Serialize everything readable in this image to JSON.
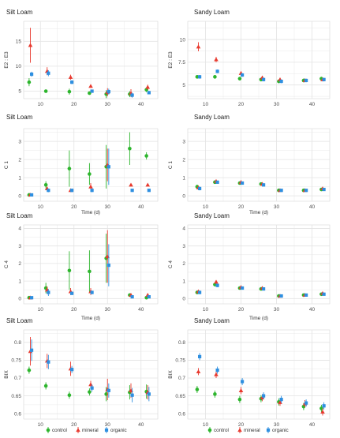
{
  "colors": {
    "control": "#2db52d",
    "mineral": "#e8392e",
    "organic": "#2e8fe0",
    "panel_bg": "#ffffff",
    "grid": "#e3e3e3",
    "axis_text": "#4d4d4d"
  },
  "legend": {
    "entries": [
      {
        "label": "control",
        "shape": "circle",
        "color": "#2db52d"
      },
      {
        "label": "mineral",
        "shape": "triangle",
        "color": "#e8392e"
      },
      {
        "label": "organic",
        "shape": "square",
        "color": "#2e8fe0"
      }
    ]
  },
  "chart_data": [
    {
      "type": "scatter",
      "title": "Silt Loam",
      "xlabel": "",
      "ylabel": "E2 : E3",
      "xlim": [
        5,
        45
      ],
      "ylim": [
        3.5,
        19
      ],
      "xticks": [
        10,
        20,
        30,
        40
      ],
      "yticks": [
        5,
        10,
        15
      ],
      "grid": true,
      "series": [
        {
          "name": "control",
          "x": [
            7,
            12,
            19,
            25,
            30,
            37,
            42
          ],
          "y": [
            6.8,
            5.0,
            4.9,
            4.6,
            4.4,
            4.4,
            5.3
          ],
          "err": [
            0.8,
            0.2,
            0.6,
            0.3,
            0.8,
            0.6,
            0.5
          ]
        },
        {
          "name": "mineral",
          "x": [
            7,
            12,
            19,
            25,
            30,
            37,
            42
          ],
          "y": [
            14.2,
            9.0,
            7.8,
            6.0,
            4.8,
            4.6,
            5.8
          ],
          "err": [
            3.5,
            0.8,
            0.5,
            0.3,
            0.8,
            0.8,
            0.5
          ]
        },
        {
          "name": "organic",
          "x": [
            7,
            12,
            19,
            25,
            30,
            37,
            42
          ],
          "y": [
            8.4,
            8.6,
            6.8,
            5.0,
            4.9,
            4.2,
            4.7
          ],
          "err": [
            0.5,
            0.6,
            0.4,
            0.3,
            0.6,
            0.5,
            0.3
          ]
        }
      ]
    },
    {
      "type": "scatter",
      "title": "Sandy Loam",
      "xlabel": "",
      "ylabel": "E2 : E3",
      "xlim": [
        5,
        45
      ],
      "ylim": [
        3.5,
        12
      ],
      "xticks": [
        10,
        20,
        30,
        40
      ],
      "yticks": [
        5,
        7.5,
        10
      ],
      "grid": true,
      "series": [
        {
          "name": "control",
          "x": [
            8,
            13,
            20,
            26,
            31,
            38,
            43
          ],
          "y": [
            5.9,
            5.9,
            5.7,
            5.6,
            5.4,
            5.5,
            5.7
          ],
          "err": [
            0.2,
            0.2,
            0.2,
            0.2,
            0.2,
            0.2,
            0.2
          ]
        },
        {
          "name": "mineral",
          "x": [
            8,
            13,
            20,
            26,
            31,
            38,
            43
          ],
          "y": [
            9.2,
            7.8,
            6.3,
            5.8,
            5.6,
            5.5,
            5.6
          ],
          "err": [
            0.5,
            0.3,
            0.2,
            0.2,
            0.2,
            0.2,
            0.2
          ]
        },
        {
          "name": "organic",
          "x": [
            8,
            13,
            20,
            26,
            31,
            38,
            43
          ],
          "y": [
            5.9,
            6.5,
            6.1,
            5.6,
            5.4,
            5.5,
            5.6
          ],
          "err": [
            0.2,
            0.2,
            0.2,
            0.2,
            0.2,
            0.2,
            0.2
          ]
        }
      ]
    },
    {
      "type": "scatter",
      "title": "Silt Loam",
      "xlabel": "Time (d)",
      "ylabel": "C 1",
      "xlim": [
        5,
        45
      ],
      "ylim": [
        -0.3,
        3.7
      ],
      "xticks": [
        10,
        20,
        30,
        40
      ],
      "yticks": [
        0,
        1,
        2,
        3
      ],
      "grid": true,
      "series": [
        {
          "name": "control",
          "x": [
            7,
            12,
            19,
            25,
            30,
            37,
            42
          ],
          "y": [
            0.05,
            0.6,
            1.5,
            1.2,
            1.6,
            2.6,
            2.2
          ],
          "err": [
            0.05,
            0.2,
            1.0,
            0.6,
            1.2,
            0.9,
            0.2
          ]
        },
        {
          "name": "mineral",
          "x": [
            7,
            12,
            19,
            25,
            30,
            37,
            42
          ],
          "y": [
            0.05,
            0.4,
            0.3,
            0.5,
            1.7,
            0.6,
            0.6
          ],
          "err": [
            0.05,
            0.1,
            0.1,
            0.2,
            0.9,
            0.05,
            0.05
          ]
        },
        {
          "name": "organic",
          "x": [
            7,
            12,
            19,
            25,
            30,
            37,
            42
          ],
          "y": [
            0.05,
            0.3,
            0.3,
            0.3,
            1.6,
            0.3,
            0.3
          ],
          "err": [
            0.05,
            0.1,
            0.1,
            0.1,
            1.0,
            0.05,
            0.05
          ]
        }
      ]
    },
    {
      "type": "scatter",
      "title": "Sandy Loam",
      "xlabel": "Time (d)",
      "ylabel": "C 1",
      "xlim": [
        5,
        45
      ],
      "ylim": [
        -0.3,
        3.7
      ],
      "xticks": [
        10,
        20,
        30,
        40
      ],
      "yticks": [
        0,
        1,
        2,
        3
      ],
      "grid": true,
      "series": [
        {
          "name": "control",
          "x": [
            8,
            13,
            20,
            26,
            31,
            38,
            43
          ],
          "y": [
            0.5,
            0.75,
            0.7,
            0.65,
            0.3,
            0.3,
            0.35
          ],
          "err": [
            0.1,
            0.05,
            0.05,
            0.05,
            0.05,
            0.05,
            0.05
          ]
        },
        {
          "name": "mineral",
          "x": [
            8,
            13,
            20,
            26,
            31,
            38,
            43
          ],
          "y": [
            0.45,
            0.8,
            0.75,
            0.65,
            0.3,
            0.3,
            0.4
          ],
          "err": [
            0.1,
            0.05,
            0.05,
            0.05,
            0.05,
            0.05,
            0.05
          ]
        },
        {
          "name": "organic",
          "x": [
            8,
            13,
            20,
            26,
            31,
            38,
            43
          ],
          "y": [
            0.4,
            0.75,
            0.7,
            0.6,
            0.3,
            0.3,
            0.35
          ],
          "err": [
            0.1,
            0.05,
            0.05,
            0.05,
            0.05,
            0.05,
            0.05
          ]
        }
      ]
    },
    {
      "type": "scatter",
      "title": "Silt Loam",
      "xlabel": "Time (d)",
      "ylabel": "C 4",
      "xlim": [
        5,
        45
      ],
      "ylim": [
        -0.3,
        4.2
      ],
      "xticks": [
        10,
        20,
        30,
        40
      ],
      "yticks": [
        0,
        1,
        2,
        3,
        4
      ],
      "grid": true,
      "series": [
        {
          "name": "control",
          "x": [
            7,
            12,
            19,
            25,
            30,
            37,
            42
          ],
          "y": [
            0.05,
            0.6,
            1.6,
            1.55,
            2.3,
            0.2,
            0.05
          ],
          "err": [
            0.05,
            0.3,
            1.1,
            1.2,
            1.4,
            0.1,
            0.05
          ]
        },
        {
          "name": "mineral",
          "x": [
            7,
            12,
            19,
            25,
            30,
            37,
            42
          ],
          "y": [
            0.05,
            0.5,
            0.4,
            0.4,
            2.4,
            0.2,
            0.2
          ],
          "err": [
            0.05,
            0.2,
            0.2,
            0.2,
            1.5,
            0.1,
            0.1
          ]
        },
        {
          "name": "organic",
          "x": [
            7,
            12,
            19,
            25,
            30,
            37,
            42
          ],
          "y": [
            0.05,
            0.35,
            0.3,
            0.35,
            1.9,
            0.1,
            0.1
          ],
          "err": [
            0.05,
            0.2,
            0.1,
            0.1,
            1.2,
            0.05,
            0.05
          ]
        }
      ]
    },
    {
      "type": "scatter",
      "title": "Sandy Loam",
      "xlabel": "Time (d)",
      "ylabel": "C 4",
      "xlim": [
        5,
        45
      ],
      "ylim": [
        -0.3,
        4.2
      ],
      "xticks": [
        10,
        20,
        30,
        40
      ],
      "yticks": [
        0,
        1,
        2,
        3,
        4
      ],
      "grid": true,
      "series": [
        {
          "name": "control",
          "x": [
            8,
            13,
            20,
            26,
            31,
            38,
            43
          ],
          "y": [
            0.35,
            0.8,
            0.6,
            0.55,
            0.15,
            0.2,
            0.25
          ],
          "err": [
            0.1,
            0.1,
            0.05,
            0.05,
            0.05,
            0.05,
            0.05
          ]
        },
        {
          "name": "mineral",
          "x": [
            8,
            13,
            20,
            26,
            31,
            38,
            43
          ],
          "y": [
            0.4,
            0.95,
            0.65,
            0.6,
            0.15,
            0.2,
            0.3
          ],
          "err": [
            0.1,
            0.1,
            0.05,
            0.05,
            0.05,
            0.05,
            0.05
          ]
        },
        {
          "name": "organic",
          "x": [
            8,
            13,
            20,
            26,
            31,
            38,
            43
          ],
          "y": [
            0.35,
            0.75,
            0.6,
            0.55,
            0.15,
            0.2,
            0.25
          ],
          "err": [
            0.1,
            0.1,
            0.05,
            0.05,
            0.05,
            0.05,
            0.05
          ]
        }
      ]
    },
    {
      "type": "scatter",
      "title": "Silt Loam",
      "xlabel": "",
      "ylabel": "BIX",
      "xlim": [
        5,
        45
      ],
      "ylim": [
        0.585,
        0.835
      ],
      "xticks": [
        10,
        20,
        30,
        40
      ],
      "yticks": [
        0.6,
        0.65,
        0.7,
        0.75,
        0.8
      ],
      "grid": true,
      "series": [
        {
          "name": "control",
          "x": [
            7,
            12,
            19,
            25,
            30,
            37,
            42
          ],
          "y": [
            0.722,
            0.678,
            0.652,
            0.661,
            0.655,
            0.66,
            0.662
          ],
          "err": [
            0.01,
            0.01,
            0.01,
            0.01,
            0.02,
            0.02,
            0.02
          ]
        },
        {
          "name": "mineral",
          "x": [
            7,
            12,
            19,
            25,
            30,
            37,
            42
          ],
          "y": [
            0.775,
            0.748,
            0.726,
            0.682,
            0.668,
            0.665,
            0.66
          ],
          "err": [
            0.04,
            0.02,
            0.02,
            0.01,
            0.03,
            0.02,
            0.02
          ]
        },
        {
          "name": "organic",
          "x": [
            7,
            12,
            19,
            25,
            30,
            37,
            42
          ],
          "y": [
            0.778,
            0.745,
            0.724,
            0.672,
            0.665,
            0.652,
            0.655
          ],
          "err": [
            0.03,
            0.02,
            0.01,
            0.01,
            0.02,
            0.02,
            0.02
          ]
        }
      ]
    },
    {
      "type": "scatter",
      "title": "Sandy Loam",
      "xlabel": "",
      "ylabel": "BIX",
      "xlim": [
        5,
        45
      ],
      "ylim": [
        0.585,
        0.835
      ],
      "xticks": [
        10,
        20,
        30,
        40
      ],
      "yticks": [
        0.6,
        0.65,
        0.7,
        0.75,
        0.8
      ],
      "grid": true,
      "series": [
        {
          "name": "control",
          "x": [
            8,
            13,
            20,
            26,
            31,
            38,
            43
          ],
          "y": [
            0.668,
            0.655,
            0.64,
            0.642,
            0.633,
            0.62,
            0.615
          ],
          "err": [
            0.01,
            0.01,
            0.01,
            0.01,
            0.01,
            0.01,
            0.01
          ]
        },
        {
          "name": "mineral",
          "x": [
            8,
            13,
            20,
            26,
            31,
            38,
            43
          ],
          "y": [
            0.718,
            0.71,
            0.665,
            0.645,
            0.632,
            0.628,
            0.605
          ],
          "err": [
            0.01,
            0.01,
            0.01,
            0.01,
            0.01,
            0.01,
            0.01
          ]
        },
        {
          "name": "organic",
          "x": [
            8,
            13,
            20,
            26,
            31,
            38,
            43
          ],
          "y": [
            0.76,
            0.722,
            0.69,
            0.65,
            0.64,
            0.63,
            0.622
          ],
          "err": [
            0.01,
            0.01,
            0.01,
            0.01,
            0.01,
            0.01,
            0.01
          ]
        }
      ]
    }
  ]
}
